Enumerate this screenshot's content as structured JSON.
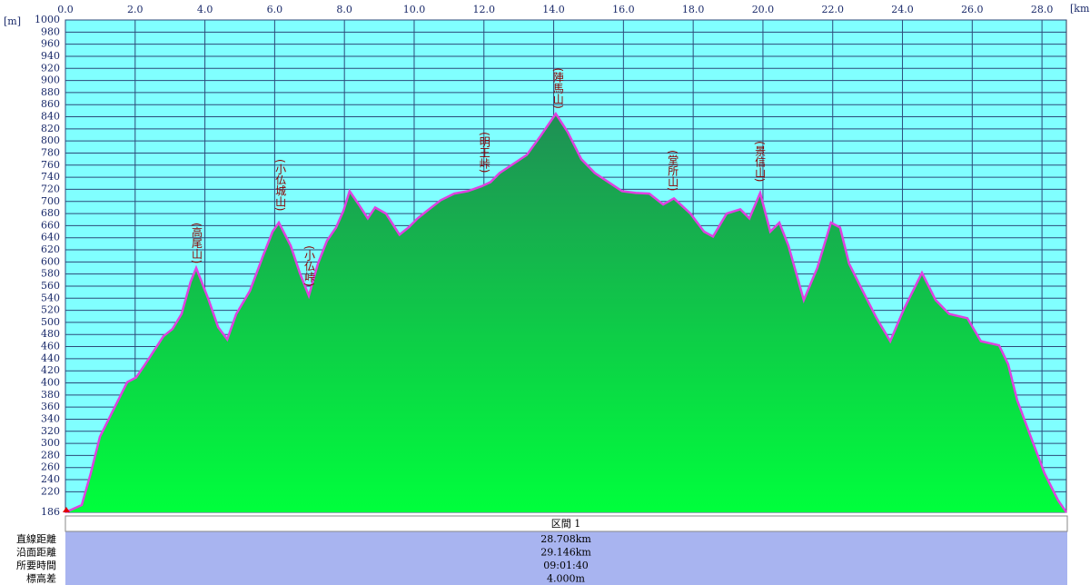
{
  "chart_data": {
    "type": "area",
    "x_label": "[km]",
    "y_label": "[m]",
    "x": [
      0,
      0.47,
      0.73,
      0.99,
      1.25,
      1.51,
      1.77,
      2.03,
      2.29,
      2.55,
      2.81,
      3.07,
      3.33,
      3.59,
      3.75,
      4.11,
      4.38,
      4.64,
      4.9,
      5.29,
      5.68,
      5.94,
      6.12,
      6.46,
      6.72,
      6.98,
      7.24,
      7.5,
      7.76,
      7.97,
      8.15,
      8.41,
      8.67,
      8.88,
      9.19,
      9.58,
      9.84,
      10.1,
      10.36,
      10.76,
      11.15,
      11.54,
      11.93,
      12.19,
      12.45,
      12.84,
      13.23,
      13.62,
      14.06,
      14.4,
      14.79,
      15.18,
      15.57,
      15.96,
      16.35,
      16.74,
      17.14,
      17.45,
      17.92,
      18.31,
      18.57,
      18.96,
      19.35,
      19.61,
      19.92,
      20.21,
      20.47,
      20.73,
      21.17,
      21.56,
      21.95,
      22.21,
      22.47,
      22.86,
      23.26,
      23.65,
      24.04,
      24.3,
      24.56,
      24.95,
      25.34,
      25.86,
      26.25,
      26.77,
      27.03,
      27.29,
      27.68,
      28.07,
      28.46,
      28.7
    ],
    "values": [
      186,
      198,
      251,
      311,
      341,
      371,
      401,
      409,
      431,
      454,
      477,
      489,
      514,
      567,
      590,
      537,
      492,
      472,
      514,
      552,
      612,
      650,
      665,
      627,
      582,
      544,
      597,
      635,
      657,
      684,
      717,
      695,
      672,
      690,
      680,
      645,
      657,
      672,
      684,
      702,
      713,
      717,
      725,
      732,
      747,
      762,
      777,
      808,
      845,
      815,
      770,
      747,
      732,
      717,
      714,
      713,
      695,
      705,
      680,
      650,
      642,
      680,
      687,
      672,
      714,
      650,
      665,
      627,
      537,
      590,
      665,
      657,
      597,
      552,
      507,
      469,
      522,
      552,
      582,
      537,
      514,
      507,
      469,
      462,
      431,
      371,
      311,
      251,
      206,
      186
    ],
    "xlim": [
      0,
      28.7
    ],
    "ylim": [
      186,
      1000
    ],
    "xticks": [
      {
        "value": 0,
        "label": "0.0"
      },
      {
        "value": 2,
        "label": "2.0"
      },
      {
        "value": 4,
        "label": "4.0"
      },
      {
        "value": 6,
        "label": "6.0"
      },
      {
        "value": 8,
        "label": "8.0"
      },
      {
        "value": 10,
        "label": "10.0"
      },
      {
        "value": 12,
        "label": "12.0"
      },
      {
        "value": 14,
        "label": "14.0"
      },
      {
        "value": 16,
        "label": "16.0"
      },
      {
        "value": 18,
        "label": "18.0"
      },
      {
        "value": 20,
        "label": "20.0"
      },
      {
        "value": 22,
        "label": "22.0"
      },
      {
        "value": 24,
        "label": "24.0"
      },
      {
        "value": 26,
        "label": "26.0"
      },
      {
        "value": 28,
        "label": "28.0"
      }
    ],
    "yticks": [
      186,
      220,
      240,
      260,
      280,
      300,
      320,
      340,
      360,
      380,
      400,
      420,
      440,
      460,
      480,
      500,
      520,
      540,
      560,
      580,
      600,
      620,
      640,
      660,
      680,
      700,
      720,
      740,
      760,
      780,
      800,
      820,
      840,
      860,
      880,
      900,
      920,
      940,
      960,
      980,
      1000
    ],
    "grid": true,
    "color": "#e040e0",
    "fill_top": "#1f8f55",
    "fill_bottom": "#00ff3c",
    "background": "#80ffff",
    "annotations": [
      {
        "text": "(高尾山)",
        "x": 3.75,
        "y": 597
      },
      {
        "text": "(小仏城山)",
        "x": 6.15,
        "y": 684
      },
      {
        "text": "(小仏峠)",
        "x": 6.98,
        "y": 559
      },
      {
        "text": "(明王峠)",
        "x": 12.0,
        "y": 747
      },
      {
        "text": "(陣馬山)",
        "x": 14.11,
        "y": 853
      },
      {
        "text": "(堂所山)",
        "x": 17.4,
        "y": 717
      },
      {
        "text": "(景信山)",
        "x": 19.9,
        "y": 732
      }
    ]
  },
  "summary": {
    "header": "区間 1",
    "rows": [
      [
        "直線距離",
        "28.708km"
      ],
      [
        "沿面距離",
        "29.146km"
      ],
      [
        "所要時間",
        "09:01:40"
      ],
      [
        "標高差",
        "4.000m"
      ]
    ]
  }
}
